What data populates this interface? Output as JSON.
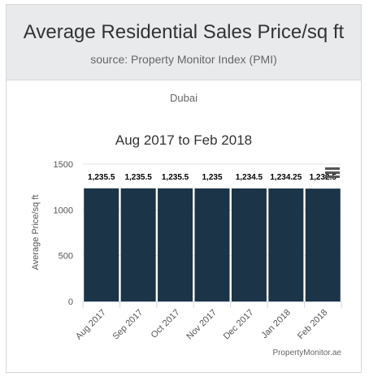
{
  "header": {
    "title": "Average Residential Sales Price/sq ft",
    "subtitle": "source: Property Monitor Index (PMI)"
  },
  "region": "Dubai",
  "chart_data": {
    "type": "bar",
    "title": "Aug 2017 to Feb 2018",
    "ylabel": "Average Price/sq ft",
    "xlabel": "",
    "categories": [
      "Aug 2017",
      "Sep 2017",
      "Oct 2017",
      "Nov 2017",
      "Dec 2017",
      "Jan 2018",
      "Feb 2018"
    ],
    "values": [
      1235.5,
      1235.5,
      1235.5,
      1235,
      1234.5,
      1234.25,
      1232.5
    ],
    "data_labels": [
      "1,235.5",
      "1,235.5",
      "1,235.5",
      "1,235",
      "1,234.5",
      "1,234.25",
      "1,232.5"
    ],
    "ylim": [
      0,
      1500
    ],
    "yticks": [
      0,
      500,
      1000,
      1500
    ],
    "grid": true,
    "bar_color": "#1c3447",
    "credit": "PropertyMonitor.ae"
  },
  "menu_icon": "hamburger-menu-icon"
}
